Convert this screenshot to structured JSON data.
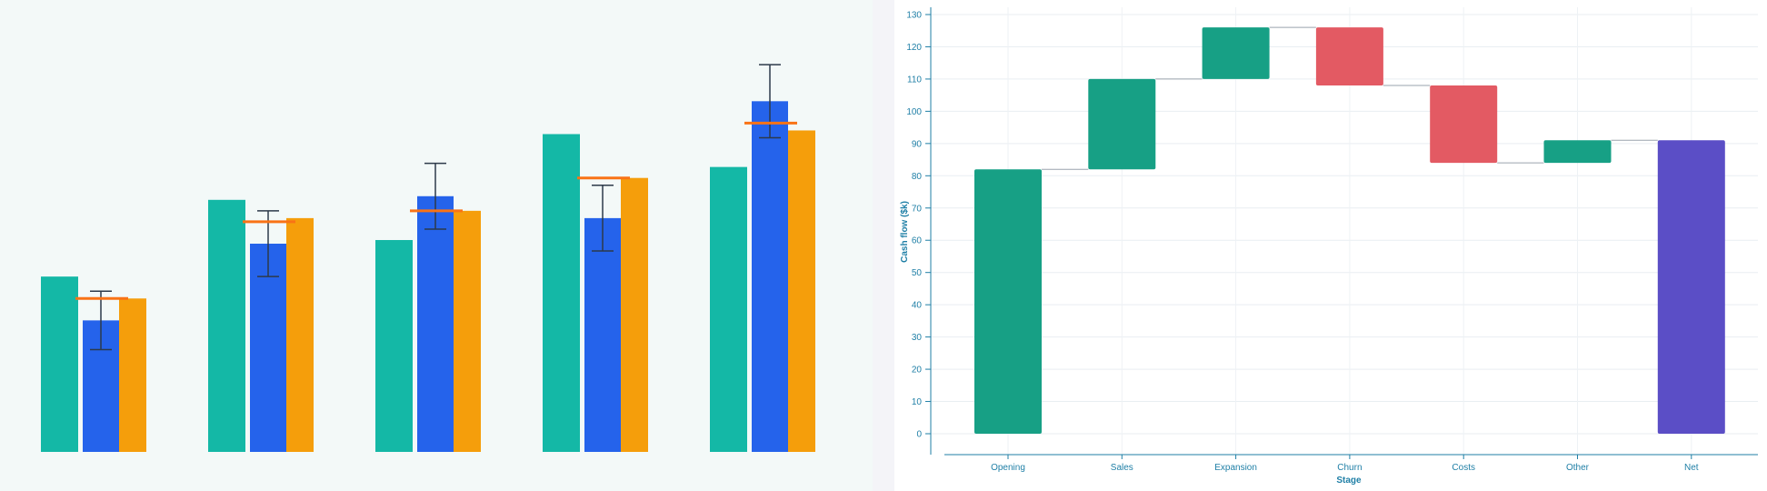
{
  "chart_data": [
    {
      "type": "bar",
      "categories": [
        "",
        "",
        "",
        "",
        ""
      ],
      "series": [
        {
          "values": [
            48,
            69,
            58,
            87,
            78
          ],
          "color": "#14b8a6"
        },
        {
          "values": [
            36,
            57,
            70,
            64,
            96
          ],
          "color": "#2563eb",
          "error": [
            8,
            9,
            9,
            9,
            10
          ]
        },
        {
          "values": [
            42,
            64,
            66,
            75,
            88
          ],
          "color": "#f59e0b"
        }
      ],
      "markers": {
        "values": [
          42,
          63,
          66,
          75,
          90
        ],
        "color": "#f97316"
      },
      "ylim": [
        0,
        115
      ],
      "grid": false,
      "legend": false
    },
    {
      "type": "waterfall",
      "categories": [
        "Opening",
        "Sales",
        "Expansion",
        "Churn",
        "Costs",
        "Other",
        "Net"
      ],
      "deltas": [
        82,
        28,
        16,
        -18,
        -24,
        7,
        91
      ],
      "kinds": [
        "total",
        "delta",
        "delta",
        "delta",
        "delta",
        "delta",
        "total"
      ],
      "xlabel": "Stage",
      "ylabel": "Cash flow ($k)",
      "ylim": [
        0,
        130
      ],
      "yticks": [
        0,
        10,
        20,
        30,
        40,
        50,
        60,
        70,
        80,
        90,
        100,
        110,
        120,
        130
      ],
      "colors": {
        "increase": "#17a085",
        "decrease": "#e35a63",
        "total": "#5b4ec6",
        "opening": "#17a085"
      },
      "grid": true,
      "legend": false
    }
  ]
}
